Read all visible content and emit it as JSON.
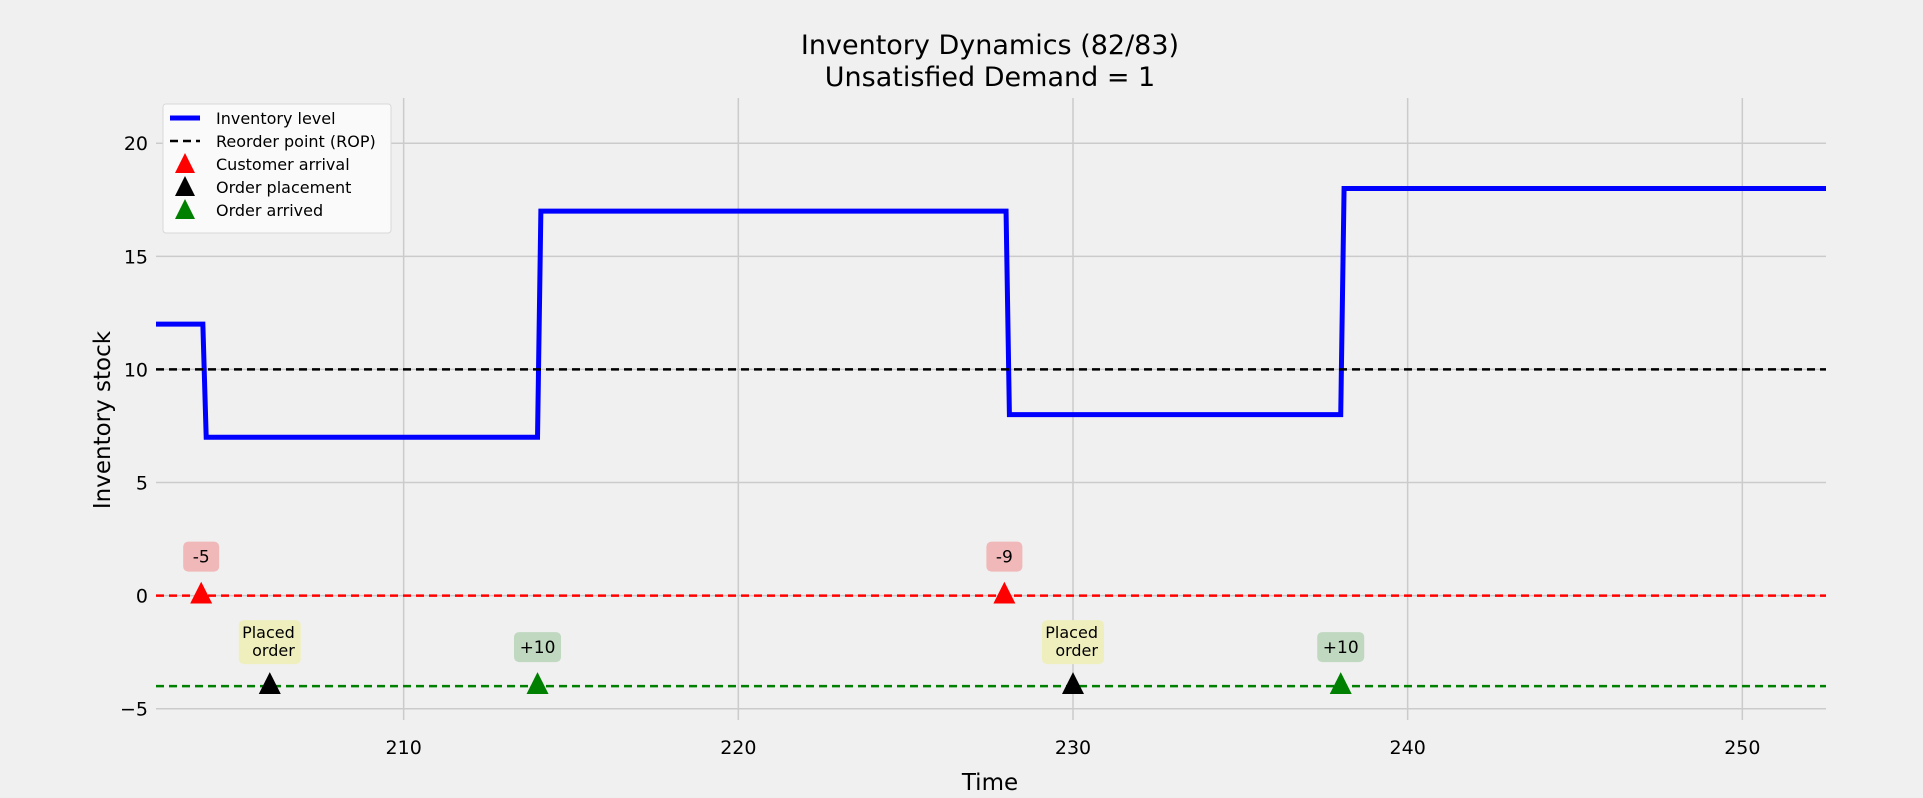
{
  "chart_data": {
    "type": "line",
    "title": "Inventory Dynamics (82/83)",
    "subtitle": "Unsatisfied Demand = 1",
    "xlabel": "Time",
    "ylabel": "Inventory stock",
    "xlim": [
      202.6,
      252.5
    ],
    "ylim": [
      -5.5,
      22
    ],
    "x_ticks": [
      210,
      220,
      230,
      240,
      250
    ],
    "x_tick_labels": [
      "210",
      "220",
      "230",
      "240",
      "250"
    ],
    "y_ticks": [
      -5,
      0,
      5,
      10,
      15,
      20
    ],
    "y_tick_labels": [
      "−5",
      "0",
      "5",
      "10",
      "15",
      "20"
    ],
    "grid": true,
    "legend_position": "top-left",
    "series": [
      {
        "name": "Inventory level",
        "color": "#0000ff",
        "style": "solid",
        "x": [
          202.6,
          204.0,
          204.1,
          214.0,
          214.1,
          228.0,
          228.1,
          238.0,
          238.1,
          252.5
        ],
        "y": [
          12,
          12,
          7,
          7,
          17,
          17,
          8,
          8,
          18,
          18
        ]
      },
      {
        "name": "Reorder point (ROP)",
        "color": "#000000",
        "style": "dashed",
        "y_value": 10
      }
    ],
    "reference_lines": [
      {
        "y": 0,
        "color": "#ff0000",
        "style": "dashed"
      },
      {
        "y": -4,
        "color": "#008000",
        "style": "dashed"
      }
    ],
    "markers": [
      {
        "name": "Customer arrival",
        "color": "#ff0000",
        "x": [
          203.95,
          227.95
        ],
        "y": [
          0,
          0
        ],
        "labels": [
          "-5",
          "-9"
        ],
        "label_bg": "#f0b8b8"
      },
      {
        "name": "Order placement",
        "color": "#000000",
        "x": [
          206.0,
          230.0
        ],
        "y": [
          -4,
          -4
        ],
        "labels": [
          "Placed\n order",
          "Placed\n order"
        ],
        "label_bg": "#efefbe"
      },
      {
        "name": "Order arrived",
        "color": "#008000",
        "x": [
          214.0,
          238.0
        ],
        "y": [
          -4,
          -4
        ],
        "labels": [
          "+10",
          "+10"
        ],
        "label_bg": "#bfd8bf"
      }
    ],
    "legend": [
      "Inventory level",
      "Reorder point (ROP)",
      "Customer arrival",
      "Order placement",
      "Order arrived"
    ]
  }
}
